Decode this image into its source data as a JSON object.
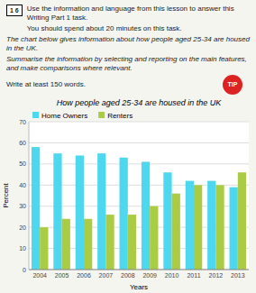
{
  "chart_data": {
    "type": "bar",
    "title": "How people aged 25-34 are housed in the UK",
    "xlabel": "Years",
    "ylabel": "Percent",
    "annotations": [
      "1 6",
      "Use the information and language from this lesson to answer this Writing Part 1 task.",
      "You should spend about 20 minutes on this task.",
      "The chart below gives information about how people aged 25-34 are housed in the UK.",
      "Summarise the information by selecting and reporting on the main features,",
      "and make comparisons where relevant.",
      "Write at least 150 words.",
      "TIP"
    ],
    "categories": [
      "2004",
      "2005",
      "2006",
      "2007",
      "2008",
      "2009",
      "2010",
      "2011",
      "2012",
      "2013"
    ],
    "series": [
      {
        "name": "Home Owners",
        "color": "#4DD8F0",
        "values": [
          58,
          55,
          54,
          55,
          53,
          51,
          46,
          42,
          42,
          39
        ]
      },
      {
        "name": "Renters",
        "color": "#AACC44",
        "values": [
          20,
          24,
          24,
          26,
          26,
          30,
          36,
          40,
          40,
          46
        ]
      }
    ],
    "ylim": [
      0,
      70
    ],
    "yticks": [
      0,
      10,
      20,
      30,
      40,
      50,
      60,
      70
    ],
    "grid": true,
    "legend": "top"
  }
}
